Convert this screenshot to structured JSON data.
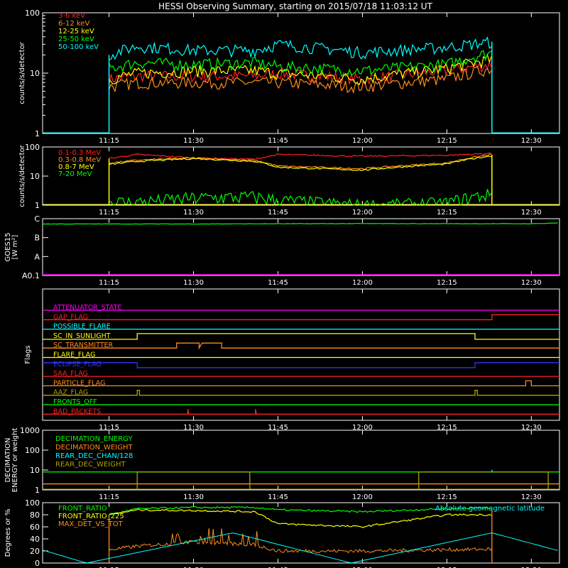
{
  "title": "HESSI Observing Summary, starting on 2015/07/18 11:03:12 UT",
  "time_ticks": [
    "11:15",
    "11:30",
    "11:45",
    "12:00",
    "12:15",
    "12:30"
  ],
  "colors": {
    "red": "#ff2020",
    "orange": "#ff8c1a",
    "yellow": "#ffff00",
    "green": "#00ff00",
    "cyan": "#00ffff",
    "magenta": "#ff00ff",
    "blue": "#3333ff",
    "olive": "#b0a000",
    "darkorange": "#e07000"
  },
  "chart_data": [
    {
      "type": "line",
      "ylabel": "counts/s/detector",
      "ylim": [
        1,
        100
      ],
      "yscale": "log",
      "ytick_labels": [
        "1",
        "10",
        "100"
      ],
      "legend": [
        "3-6 keV",
        "6-12 keV",
        "12-25 keV",
        "25-50 keV",
        "50-100 keV"
      ],
      "series": [
        {
          "name": "3-6 keV",
          "color": "red",
          "x": [
            "11:15",
            "11:20",
            "11:30",
            "11:41",
            "11:45",
            "12:00",
            "12:15",
            "12:23"
          ],
          "values": [
            8,
            9,
            9,
            9,
            10,
            8,
            11,
            14
          ]
        },
        {
          "name": "6-12 keV",
          "color": "orange",
          "x": [
            "11:15",
            "11:20",
            "11:30",
            "11:41",
            "11:45",
            "12:00",
            "12:15",
            "12:23"
          ],
          "values": [
            6,
            7,
            7,
            7,
            7,
            6,
            8,
            12
          ]
        },
        {
          "name": "12-25 keV",
          "color": "yellow",
          "x": [
            "11:15",
            "11:20",
            "11:30",
            "11:41",
            "11:45",
            "12:00",
            "12:15",
            "12:23"
          ],
          "values": [
            8,
            10,
            11,
            11,
            10,
            8,
            12,
            17
          ]
        },
        {
          "name": "25-50 keV",
          "color": "green",
          "x": [
            "11:15",
            "11:20",
            "11:30",
            "11:41",
            "11:45",
            "12:00",
            "12:15",
            "12:23"
          ],
          "values": [
            12,
            15,
            14,
            15,
            13,
            11,
            14,
            22
          ]
        },
        {
          "name": "50-100 keV",
          "color": "cyan",
          "x": [
            "11:15",
            "11:20",
            "11:30",
            "11:41",
            "11:45",
            "12:00",
            "12:15",
            "12:23"
          ],
          "values": [
            20,
            28,
            24,
            24,
            30,
            22,
            27,
            33
          ]
        }
      ]
    },
    {
      "type": "line",
      "ylabel": "counts/s/detector",
      "ylim": [
        1,
        100
      ],
      "yscale": "log",
      "ytick_labels": [
        "1",
        "10",
        "100"
      ],
      "legend": [
        "0.1-0.3 MeV",
        "0.3-0.8 MeV",
        "0.8-7 MeV",
        "7-20 MeV"
      ],
      "series": [
        {
          "name": "0.1-0.3 MeV",
          "color": "red",
          "x": [
            "11:15",
            "11:20",
            "11:30",
            "11:41",
            "11:45",
            "12:00",
            "12:15",
            "12:23"
          ],
          "values": [
            40,
            55,
            42,
            38,
            55,
            48,
            52,
            60
          ]
        },
        {
          "name": "0.3-0.8 MeV",
          "color": "orange",
          "x": [
            "11:15",
            "11:20",
            "11:30",
            "11:41",
            "11:45",
            "12:00",
            "12:15",
            "12:23"
          ],
          "values": [
            28,
            35,
            42,
            34,
            22,
            18,
            28,
            55
          ]
        },
        {
          "name": "0.8-7 MeV",
          "color": "yellow",
          "x": [
            "11:15",
            "11:20",
            "11:30",
            "11:41",
            "11:45",
            "12:00",
            "12:15",
            "12:23"
          ],
          "values": [
            25,
            32,
            40,
            32,
            20,
            16,
            26,
            50
          ]
        },
        {
          "name": "7-20 MeV",
          "color": "green",
          "x": [
            "11:15",
            "11:20",
            "11:30",
            "11:41",
            "11:45",
            "12:00",
            "12:15",
            "12:23"
          ],
          "values": [
            1.3,
            1.3,
            1.8,
            2,
            1.5,
            1,
            1.2,
            2.5
          ]
        }
      ]
    },
    {
      "type": "line",
      "ylabel_lines": [
        "GOES15",
        "[W m²]"
      ],
      "ytick_labels": [
        "A0.1",
        "A",
        "B",
        "C"
      ],
      "ylim": [
        0,
        3
      ],
      "series": [
        {
          "name": "GOES15",
          "color": "green",
          "x": [
            "11:03",
            "11:30",
            "12:00",
            "12:30",
            "12:35"
          ],
          "values": [
            2.72,
            2.72,
            2.74,
            2.73,
            2.78
          ]
        },
        {
          "name": "baseline",
          "color": "magenta",
          "x": [
            "11:03",
            "12:35"
          ],
          "values": [
            0,
            0
          ]
        }
      ]
    },
    {
      "type": "flags",
      "ylabel": "Flags",
      "flags": [
        {
          "name": "ATTENUATOR_STATE",
          "color": "magenta"
        },
        {
          "name": "GAP_FLAG",
          "color": "red"
        },
        {
          "name": "POSSIBLE_FLARE",
          "color": "cyan"
        },
        {
          "name": "SC_IN_SUNLIGHT",
          "color": "yellow"
        },
        {
          "name": "SC_TRANSMITTER",
          "color": "orange"
        },
        {
          "name": "FLARE_FLAG",
          "color": "yellow"
        },
        {
          "name": "ECLIPSE_FLAG",
          "color": "blue"
        },
        {
          "name": "SAA_FLAG",
          "color": "red"
        },
        {
          "name": "PARTICLE_FLAG",
          "color": "orange"
        },
        {
          "name": "AAZ_FLAG",
          "color": "olive"
        },
        {
          "name": "FRONTS_OFF",
          "color": "green"
        },
        {
          "name": "BAD_PACKETS",
          "color": "red"
        }
      ]
    },
    {
      "type": "line",
      "ylabel_lines": [
        "DECIMATION",
        "ENERGY or weight"
      ],
      "ylim": [
        1,
        1000
      ],
      "yscale": "log",
      "ytick_labels": [
        "1",
        "10",
        "100",
        "1000"
      ],
      "legend": [
        "DECIMATION_ENERGY",
        "DECIMATION_WEIGHT",
        "REAR_DEC_CHAN/128",
        "REAR_DEC_WEIGHT"
      ],
      "series": [
        {
          "name": "DECIMATION_ENERGY",
          "color": "green",
          "x": [
            "11:03",
            "12:35"
          ],
          "values": [
            8,
            8
          ]
        },
        {
          "name": "DECIMATION_WEIGHT",
          "color": "orange",
          "x": [
            "11:03",
            "12:35"
          ],
          "values": [
            2,
            2
          ]
        },
        {
          "name": "REAR_DEC_CHAN/128",
          "color": "cyan",
          "x": [
            "11:03",
            "12:35"
          ],
          "values": [
            8,
            8
          ]
        },
        {
          "name": "REAR_DEC_WEIGHT",
          "color": "olive",
          "x": [
            "11:03",
            "12:35"
          ],
          "values": [
            1.5,
            1.5
          ]
        }
      ]
    },
    {
      "type": "line",
      "ylabel": "Degrees or %",
      "ylim": [
        0,
        100
      ],
      "ytick_labels": [
        "0",
        "20",
        "40",
        "60",
        "80",
        "100"
      ],
      "legend": [
        "FRONT_RATIO",
        "FRONT_RATIO_225",
        "MAX_DET_VS_TOT"
      ],
      "annotation": "Absolute geomagnetic latitude",
      "series": [
        {
          "name": "FRONT_RATIO",
          "color": "green",
          "x": [
            "11:15",
            "11:20",
            "11:30",
            "11:41",
            "11:45",
            "12:00",
            "12:15",
            "12:23"
          ],
          "values": [
            80,
            90,
            92,
            92,
            88,
            85,
            90,
            92
          ]
        },
        {
          "name": "FRONT_RATIO_225",
          "color": "yellow",
          "x": [
            "11:15",
            "11:20",
            "11:30",
            "11:41",
            "11:45",
            "12:00",
            "12:15",
            "12:23"
          ],
          "values": [
            80,
            88,
            87,
            85,
            65,
            60,
            80,
            80
          ]
        },
        {
          "name": "MAX_DET_VS_TOT",
          "color": "orange",
          "x": [
            "11:15",
            "11:20",
            "11:30",
            "11:41",
            "11:45",
            "12:00",
            "12:15",
            "12:23"
          ],
          "values": [
            22,
            28,
            35,
            30,
            20,
            20,
            22,
            23
          ]
        },
        {
          "name": "Absolute geomagnetic latitude",
          "color": "cyan",
          "x": [
            "11:03",
            "11:11",
            "11:37",
            "11:58",
            "12:23",
            "12:35"
          ],
          "values": [
            22,
            0,
            50,
            0,
            50,
            20
          ]
        }
      ]
    }
  ]
}
